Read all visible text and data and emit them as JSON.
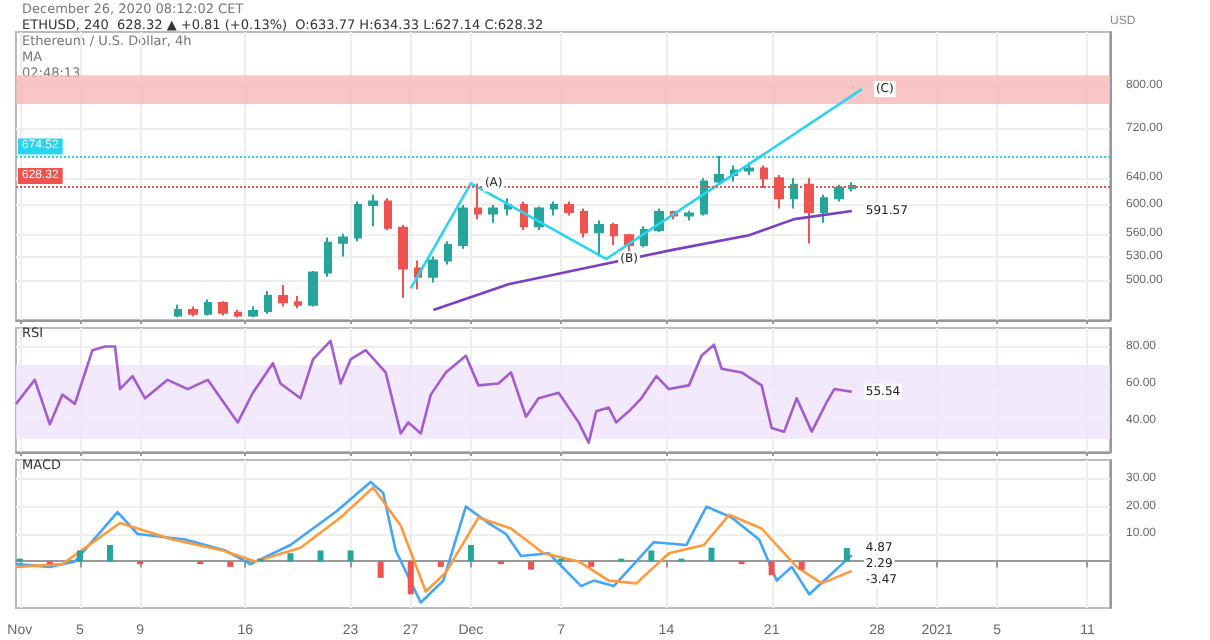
{
  "chart_data": [
    {
      "type": "candlestick",
      "title": "ETHUSD, 240  628.32 ▲ +0.81 (+0.13%)  O:633.77 H:634.33 L:627.14 C:628.32",
      "subtitle": "Ethereum / U.S. Dollar, 4h",
      "ylabel": "USD",
      "log": true,
      "grid": true,
      "tick_labels": "y",
      "xlim": [
        "2020-10-31T18:00",
        "2021-01-12T12:00"
      ],
      "xticks": [
        {
          "value": "2020-11-01",
          "label": null
        },
        {
          "value": "2020-11-05",
          "label": null
        },
        {
          "value": "2020-11-09",
          "label": null
        },
        {
          "value": "2020-11-16",
          "label": null
        },
        {
          "value": "2020-11-23",
          "label": null
        },
        {
          "value": "2020-11-27",
          "label": null
        },
        {
          "value": "2020-12-01",
          "label": null
        },
        {
          "value": "2020-12-07",
          "label": null
        },
        {
          "value": "2020-12-14",
          "label": null
        },
        {
          "value": "2020-12-21",
          "label": null
        },
        {
          "value": "2020-12-28",
          "label": null
        },
        {
          "value": "2021-01-01",
          "label": null
        },
        {
          "value": "2021-01-05",
          "label": null
        },
        {
          "value": "2021-01-11",
          "label": null
        }
      ],
      "ylim": [
        455,
        910
      ],
      "yticks": [
        {
          "value": 500,
          "label": "500.00"
        },
        {
          "value": 530,
          "label": "530.00"
        },
        {
          "value": 560,
          "label": "560.00"
        },
        {
          "value": 600,
          "label": "600.00"
        },
        {
          "value": 640,
          "label": "640.00"
        },
        {
          "value": 720,
          "label": "720.00"
        },
        {
          "value": 800,
          "label": "800.00"
        }
      ],
      "series": [
        {
          "x": [
            "2020-11-11T12:00",
            "2020-11-12T12:00",
            "2020-11-13T12:00",
            "2020-11-14T12:00",
            "2020-11-15T12:00",
            "2020-11-16T12:00",
            "2020-11-17T12:00",
            "2020-11-18T12:00",
            "2020-11-19T12:00",
            "2020-11-20T12:00",
            "2020-11-21T12:00",
            "2020-11-22T12:00",
            "2020-11-23T12:00",
            "2020-11-24T12:00",
            "2020-11-25T12:00",
            "2020-11-26T12:00",
            "2020-11-27T12:00",
            "2020-11-28T12:00",
            "2020-11-29T12:00",
            "2020-11-30T12:00",
            "2020-12-01T12:00",
            "2020-12-02T12:00",
            "2020-12-03T12:00",
            "2020-12-04T12:00",
            "2020-12-05T12:00",
            "2020-12-06T12:00",
            "2020-12-07T12:00",
            "2020-12-08T12:00",
            "2020-12-09T12:00",
            "2020-12-10T12:00",
            "2020-12-11T12:00",
            "2020-12-12T12:00",
            "2020-12-13T12:00",
            "2020-12-14T12:00",
            "2020-12-15T12:00",
            "2020-12-16T12:00",
            "2020-12-17T12:00",
            "2020-12-18T12:00",
            "2020-12-19T12:00",
            "2020-12-20T12:00",
            "2020-12-21T12:00",
            "2020-12-22T12:00",
            "2020-12-23T12:00",
            "2020-12-24T12:00",
            "2020-12-25T12:00",
            "2020-12-26T08:00"
          ],
          "ohlc": [
            [
              460,
              472,
              458,
              466
            ],
            [
              466,
              470,
              459,
              462
            ],
            [
              462,
              478,
              460,
              474
            ],
            [
              474,
              476,
              460,
              463
            ],
            [
              463,
              466,
              458,
              460
            ],
            [
              460,
              470,
              458,
              465
            ],
            [
              465,
              488,
              462,
              482
            ],
            [
              482,
              495,
              470,
              475
            ],
            [
              475,
              482,
              468,
              472
            ],
            [
              472,
              512,
              470,
              510
            ],
            [
              510,
              555,
              505,
              548
            ],
            [
              548,
              560,
              530,
              555
            ],
            [
              555,
              605,
              550,
              600
            ],
            [
              600,
              615,
              570,
              605
            ],
            [
              605,
              610,
              565,
              568
            ],
            [
              568,
              572,
              480,
              515
            ],
            [
              515,
              525,
              490,
              505
            ],
            [
              505,
              530,
              498,
              525
            ],
            [
              525,
              550,
              520,
              545
            ],
            [
              545,
              600,
              540,
              595
            ],
            [
              595,
              632,
              580,
              588
            ],
            [
              588,
              600,
              575,
              595
            ],
            [
              595,
              610,
              585,
              600
            ],
            [
              600,
              605,
              565,
              570
            ],
            [
              570,
              598,
              565,
              595
            ],
            [
              595,
              605,
              585,
              600
            ],
            [
              600,
              605,
              585,
              590
            ],
            [
              590,
              595,
              555,
              562
            ],
            [
              562,
              578,
              530,
              572
            ],
            [
              572,
              575,
              545,
              558
            ],
            [
              558,
              560,
              535,
              545
            ],
            [
              545,
              570,
              542,
              565
            ],
            [
              565,
              595,
              562,
              590
            ],
            [
              590,
              592,
              580,
              585
            ],
            [
              585,
              592,
              578,
              588
            ],
            [
              588,
              640,
              585,
              635
            ],
            [
              635,
              675,
              630,
              645
            ],
            [
              645,
              660,
              635,
              652
            ],
            [
              652,
              665,
              645,
              655
            ],
            [
              655,
              660,
              625,
              640
            ],
            [
              640,
              645,
              595,
              610
            ],
            [
              610,
              640,
              595,
              630
            ],
            [
              630,
              640,
              547,
              590
            ],
            [
              590,
              615,
              575,
              610
            ],
            [
              610,
              630,
              605,
              625
            ],
            [
              625,
              634,
              620,
              628.32
            ]
          ],
          "colors": [
            "#26a69a",
            "#ef5350",
            "#26a69a",
            "#ef5350",
            "#ef5350",
            "#26a69a",
            "#26a69a",
            "#ef5350",
            "#ef5350",
            "#26a69a",
            "#26a69a",
            "#26a69a",
            "#26a69a",
            "#26a69a",
            "#ef5350",
            "#ef5350",
            "#ef5350",
            "#26a69a",
            "#26a69a",
            "#26a69a",
            "#ef5350",
            "#26a69a",
            "#26a69a",
            "#ef5350",
            "#26a69a",
            "#26a69a",
            "#ef5350",
            "#ef5350",
            "#26a69a",
            "#ef5350",
            "#ef5350",
            "#26a69a",
            "#26a69a",
            "#ef5350",
            "#26a69a",
            "#26a69a",
            "#26a69a",
            "#26a69a",
            "#26a69a",
            "#ef5350",
            "#ef5350",
            "#26a69a",
            "#ef5350",
            "#26a69a",
            "#26a69a",
            "#26a69a"
          ]
        },
        {
          "type": "line",
          "color": "#7b3fc4",
          "x": [
            "2020-11-28T12:00",
            "2020-12-03T12:00",
            "2020-12-09T12:00",
            "2020-12-14T12:00",
            "2020-12-19T12:00",
            "2020-12-22T12:00",
            "2020-12-26T08:00"
          ],
          "values": [
            466,
            496,
            519,
            539,
            558,
            580,
            591.57
          ]
        },
        {
          "type": "line",
          "color": "#2ad4f0",
          "x": [
            "2020-11-27T00:00",
            "2020-12-01T00:00",
            "2020-12-10T00:00",
            "2020-12-27T00:00"
          ],
          "values": [
            491,
            632,
            527,
            793
          ]
        }
      ],
      "ref_lines": [
        {
          "axis": "y",
          "value": 674.52,
          "label": "674.52",
          "color": "#2ad4f0",
          "line_style": "dotted"
        },
        {
          "axis": "y",
          "value": 628.32,
          "label": "628.32",
          "color": "#ef5350",
          "line_style": "dotted"
        }
      ],
      "bands": [
        {
          "axis": "y",
          "from": 765,
          "to": 820,
          "color": "#f8b8b8"
        }
      ],
      "annotations": [
        "December 26, 2020 08:12:02 CET",
        "MA",
        "02:48:13",
        {
          "text": "(A)",
          "x": "2020-12-01T00:00",
          "y": 632
        },
        {
          "text": "(B)",
          "x": "2020-12-10T00:00",
          "y": 527
        },
        {
          "text": "(C)",
          "x": "2020-12-27T00:00",
          "y": 793
        },
        {
          "text": "591.57",
          "x": "2020-12-26T08:00",
          "y": 591.57
        }
      ]
    },
    {
      "type": "line",
      "title": "RSI",
      "grid": true,
      "tick_labels": "y",
      "xlim": [
        "2020-10-31T18:00",
        "2021-01-12T12:00"
      ],
      "xticks": [
        {
          "value": "2020-11-01",
          "label": null
        },
        {
          "value": "2020-11-05",
          "label": null
        },
        {
          "value": "2020-11-09",
          "label": null
        },
        {
          "value": "2020-11-16",
          "label": null
        },
        {
          "value": "2020-11-23",
          "label": null
        },
        {
          "value": "2020-11-27",
          "label": null
        },
        {
          "value": "2020-12-01",
          "label": null
        },
        {
          "value": "2020-12-07",
          "label": null
        },
        {
          "value": "2020-12-14",
          "label": null
        },
        {
          "value": "2020-12-21",
          "label": null
        },
        {
          "value": "2020-12-28",
          "label": null
        },
        {
          "value": "2021-01-01",
          "label": null
        },
        {
          "value": "2021-01-05",
          "label": null
        },
        {
          "value": "2021-01-11",
          "label": null
        }
      ],
      "ylim": [
        23,
        90
      ],
      "yticks": [
        {
          "value": 40,
          "label": "40.00"
        },
        {
          "value": 60,
          "label": "60.00"
        },
        {
          "value": 80,
          "label": "80.00"
        }
      ],
      "series": [
        {
          "color": "#a45bd0",
          "x": [
            "2020-10-31T18:00",
            "2020-11-02T00:00",
            "2020-11-03T00:00",
            "2020-11-03T20:00",
            "2020-11-04T16:00",
            "2020-11-05T20:00",
            "2020-11-06T16:00",
            "2020-11-07T08:00",
            "2020-11-07T16:00",
            "2020-11-08T12:00",
            "2020-11-09T08:00",
            "2020-11-10T20:00",
            "2020-11-12T04:00",
            "2020-11-13T12:00",
            "2020-11-15T12:00",
            "2020-11-16T12:00",
            "2020-11-17T20:00",
            "2020-11-18T08:00",
            "2020-11-19T16:00",
            "2020-11-20T12:00",
            "2020-11-21T16:00",
            "2020-11-22T08:00",
            "2020-11-23T00:00",
            "2020-11-24T00:00",
            "2020-11-25T08:00",
            "2020-11-26T08:00",
            "2020-11-26T20:00",
            "2020-11-27T16:00",
            "2020-11-28T08:00",
            "2020-11-29T08:00",
            "2020-11-30T16:00",
            "2020-12-01T12:00",
            "2020-12-02T20:00",
            "2020-12-03T16:00",
            "2020-12-04T16:00",
            "2020-12-05T12:00",
            "2020-12-06T20:00",
            "2020-12-08T04:00",
            "2020-12-08T20:00",
            "2020-12-09T08:00",
            "2020-12-10T04:00",
            "2020-12-10T16:00",
            "2020-12-11T12:00",
            "2020-12-12T08:00",
            "2020-12-13T08:00",
            "2020-12-14T04:00",
            "2020-12-15T12:00",
            "2020-12-16T08:00",
            "2020-12-17T04:00",
            "2020-12-17T16:00",
            "2020-12-19T00:00",
            "2020-12-20T08:00",
            "2020-12-21T00:00",
            "2020-12-21T20:00",
            "2020-12-22T16:00",
            "2020-12-23T16:00",
            "2020-12-24T16:00",
            "2020-12-25T04:00",
            "2020-12-26T08:00"
          ],
          "values": [
            49,
            62,
            38,
            54,
            49,
            78,
            80,
            80,
            57,
            64,
            52,
            62,
            57,
            62,
            39,
            55,
            71,
            60,
            52,
            73,
            83,
            60,
            73,
            78,
            66,
            33,
            39,
            33,
            54,
            66,
            75,
            59,
            60,
            66,
            42,
            52,
            55,
            39,
            28,
            45,
            47,
            39,
            45,
            52,
            64,
            57,
            59,
            75,
            81,
            68,
            66,
            59,
            36,
            34,
            52,
            34,
            50,
            57,
            55.54
          ]
        }
      ],
      "bands": [
        {
          "axis": "y",
          "from": 30,
          "to": 70,
          "color": "#efe3fb"
        }
      ],
      "annotations": [
        {
          "text": "55.54",
          "x": "2020-12-26T08:00",
          "y": 55.54
        }
      ]
    },
    {
      "type": "line",
      "title": "MACD",
      "grid": true,
      "xlim": [
        "2020-10-31T18:00",
        "2021-01-12T12:00"
      ],
      "xticks": [
        {
          "value": "2020-11-01",
          "label": "Nov"
        },
        {
          "value": "2020-11-05",
          "label": "5"
        },
        {
          "value": "2020-11-09",
          "label": "9"
        },
        {
          "value": "2020-11-16",
          "label": "16"
        },
        {
          "value": "2020-11-23",
          "label": "23"
        },
        {
          "value": "2020-11-27",
          "label": "27"
        },
        {
          "value": "2020-12-01",
          "label": "Dec"
        },
        {
          "value": "2020-12-07",
          "label": "7"
        },
        {
          "value": "2020-12-14",
          "label": "14"
        },
        {
          "value": "2020-12-21",
          "label": "21"
        },
        {
          "value": "2020-12-28",
          "label": "28"
        },
        {
          "value": "2021-01-01",
          "label": "2021"
        },
        {
          "value": "2021-01-05",
          "label": "5"
        },
        {
          "value": "2021-01-11",
          "label": "11"
        }
      ],
      "ylim": [
        -17,
        37
      ],
      "yticks": [
        {
          "value": 10,
          "label": "10.00"
        },
        {
          "value": 20,
          "label": "20.00"
        },
        {
          "value": 30,
          "label": "30.00"
        }
      ],
      "series": [
        {
          "type": "bar",
          "x": [
            "2020-11-01",
            "2020-11-03",
            "2020-11-05",
            "2020-11-07",
            "2020-11-09",
            "2020-11-11",
            "2020-11-13",
            "2020-11-15",
            "2020-11-17",
            "2020-11-19",
            "2020-11-21",
            "2020-11-23",
            "2020-11-25",
            "2020-11-27",
            "2020-11-29",
            "2020-12-01",
            "2020-12-03",
            "2020-12-05",
            "2020-12-07",
            "2020-12-09",
            "2020-12-11",
            "2020-12-13",
            "2020-12-15",
            "2020-12-17",
            "2020-12-19",
            "2020-12-21",
            "2020-12-23",
            "2020-12-26"
          ],
          "values": [
            1,
            -1,
            4,
            6,
            -1,
            0,
            -1,
            -2,
            1,
            3,
            4,
            4,
            -6,
            -12,
            -2,
            6,
            -1,
            -3,
            1,
            -2,
            1,
            4,
            1,
            5,
            -1,
            -5,
            -3,
            4.87
          ],
          "colors": [
            "#26a69a",
            "#ef5350",
            "#26a69a",
            "#26a69a",
            "#ef5350",
            "#26a69a",
            "#ef5350",
            "#ef5350",
            "#26a69a",
            "#26a69a",
            "#26a69a",
            "#26a69a",
            "#ef5350",
            "#ef5350",
            "#ef5350",
            "#26a69a",
            "#ef5350",
            "#ef5350",
            "#26a69a",
            "#ef5350",
            "#26a69a",
            "#26a69a",
            "#26a69a",
            "#26a69a",
            "#ef5350",
            "#ef5350",
            "#ef5350",
            "#26a69a"
          ]
        },
        {
          "color": "#42a5f5",
          "x": [
            "2020-10-31T18:00",
            "2020-11-03T00:00",
            "2020-11-04T16:00",
            "2020-11-07T12:00",
            "2020-11-08T20:00",
            "2020-11-12T00:00",
            "2020-11-14T16:00",
            "2020-11-16T08:00",
            "2020-11-19T00:00",
            "2020-11-22T00:00",
            "2020-11-24T08:00",
            "2020-11-25T04:00",
            "2020-11-26T00:00",
            "2020-11-27T16:00",
            "2020-11-29T04:00",
            "2020-11-30T16:00",
            "2020-12-02T04:00",
            "2020-12-03T08:00",
            "2020-12-04T08:00",
            "2020-12-06T04:00",
            "2020-12-08T08:00",
            "2020-12-09T04:00",
            "2020-12-10T12:00",
            "2020-12-13T04:00",
            "2020-12-15T08:00",
            "2020-12-16T16:00",
            "2020-12-18T08:00",
            "2020-12-20T04:00",
            "2020-12-21T08:00",
            "2020-12-22T08:00",
            "2020-12-23T12:00",
            "2020-12-26T08:00"
          ],
          "values": [
            -1,
            -2,
            0,
            18,
            10,
            8,
            4,
            -1,
            6,
            18,
            29,
            25,
            4,
            -15,
            -7,
            20,
            14,
            10,
            2,
            3,
            -9,
            -7,
            -9,
            7,
            6,
            20,
            16,
            8,
            -7,
            -2,
            -12,
            2.29
          ]
        },
        {
          "color": "#ff9a3c",
          "x": [
            "2020-10-31T18:00",
            "2020-11-03T20:00",
            "2020-11-07T16:00",
            "2020-11-11T04:00",
            "2020-11-14T12:00",
            "2020-11-16T16:00",
            "2020-11-19T16:00",
            "2020-11-22T08:00",
            "2020-11-24T12:00",
            "2020-11-26T08:00",
            "2020-11-28T00:00",
            "2020-11-29T08:00",
            "2020-12-01T12:00",
            "2020-12-03T16:00",
            "2020-12-05T20:00",
            "2020-12-08T04:00",
            "2020-12-10T04:00",
            "2020-12-12T00:00",
            "2020-12-14T04:00",
            "2020-12-16T12:00",
            "2020-12-18T04:00",
            "2020-12-20T08:00",
            "2020-12-22T16:00",
            "2020-12-24T08:00",
            "2020-12-26T08:00"
          ],
          "values": [
            -2,
            -1,
            14,
            8,
            4,
            0,
            5,
            16,
            27,
            13,
            -11,
            -4,
            16,
            12,
            3,
            0,
            -7,
            -8,
            3,
            6,
            17,
            12,
            -2,
            -8,
            -3.47
          ]
        }
      ],
      "annotations": [
        {
          "text": "4.87",
          "x": "2020-12-26T08:00",
          "y": 4.87
        },
        {
          "text": "2.29",
          "x": "2020-12-26T08:00",
          "y": 2.29
        },
        {
          "text": "-3.47",
          "x": "2020-12-26T08:00",
          "y": -3.47
        }
      ]
    }
  ]
}
